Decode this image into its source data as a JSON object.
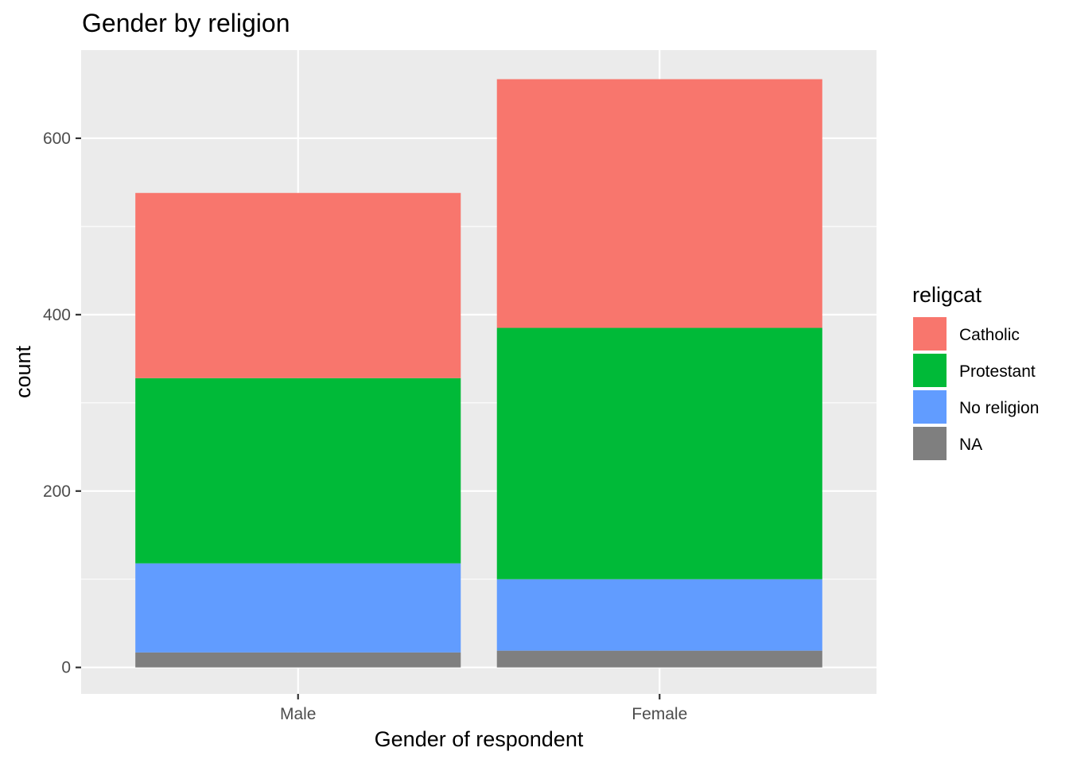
{
  "chart_data": {
    "type": "bar",
    "stacked": true,
    "title": "Gender by religion",
    "xlabel": "Gender of respondent",
    "ylabel": "count",
    "categories": [
      "Male",
      "Female"
    ],
    "series": [
      {
        "name": "NA",
        "color": "#7f7f7f",
        "values": [
          17,
          19
        ]
      },
      {
        "name": "No religion",
        "color": "#619cff",
        "values": [
          101,
          81
        ]
      },
      {
        "name": "Protestant",
        "color": "#00ba38",
        "values": [
          210,
          285
        ]
      },
      {
        "name": "Catholic",
        "color": "#f8766d",
        "values": [
          210,
          282
        ]
      }
    ],
    "ylim": [
      -30,
      700
    ],
    "yticks": [
      0,
      200,
      400,
      600
    ],
    "y_minor_ticks": [
      100,
      300,
      500
    ],
    "grid": true,
    "legend": {
      "title": "religcat",
      "position": "right",
      "order": [
        "Catholic",
        "Protestant",
        "No religion",
        "NA"
      ]
    },
    "panel_background": "#ebebeb",
    "gridline_color": "#ffffff",
    "tick_color": "#333333"
  }
}
